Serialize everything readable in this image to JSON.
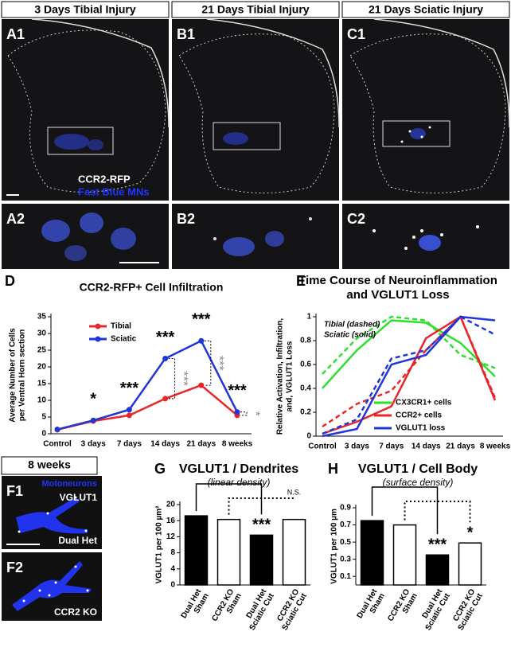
{
  "figure": {
    "columns": [
      "3 Days Tibial Injury",
      "21 Days Tibial Injury",
      "21 Days Sciatic Injury"
    ],
    "panels_top": [
      "A1",
      "B1",
      "C1"
    ],
    "panels_bottom": [
      "A2",
      "B2",
      "C2"
    ],
    "stains": [
      "CCR2-RFP",
      "Fast Blue MNs"
    ],
    "letters": [
      "D",
      "E",
      "G",
      "H"
    ],
    "f_header": "8 weeks",
    "f_panels": [
      "F1",
      "F2"
    ],
    "f_labels": [
      "Motoneurons",
      "VGLUT1",
      "Dual Het",
      "CCR2 KO"
    ]
  },
  "chart_data": [
    {
      "type": "line",
      "title": [
        "CCR2-RFP+ Cell Infiltration"
      ],
      "ylabel": [
        "Average Number of Cells",
        "per Ventral Horn section"
      ],
      "categories": [
        "Control",
        "3 days",
        "7 days",
        "14 days",
        "21 days",
        "8 weeks"
      ],
      "series": [
        {
          "name": "Tibial",
          "color": "#e8262a",
          "values": [
            1.2,
            3.8,
            5.5,
            10.5,
            14.5,
            5.5
          ]
        },
        {
          "name": "Sciatic",
          "color": "#2236d8",
          "values": [
            1.3,
            4,
            7.2,
            22.5,
            27.8,
            6.5
          ]
        }
      ],
      "annotations": [
        {
          "label": "*",
          "category": "3 days"
        },
        {
          "label": "***",
          "category": "7 days"
        },
        {
          "label": "***",
          "category": "14 days"
        },
        {
          "label": "***",
          "category": "21 days"
        },
        {
          "label": "***",
          "category": "8 weeks"
        }
      ],
      "comparison_labels": [
        {
          "label": "***",
          "category": "14 days"
        },
        {
          "label": "***",
          "category": "21 days"
        },
        {
          "label": "*",
          "category": "8 weeks"
        }
      ],
      "ylim": [
        0,
        35
      ],
      "yticks": [
        0,
        5,
        10,
        15,
        20,
        25,
        30,
        35
      ]
    },
    {
      "type": "line",
      "title": [
        "Time Course of Neuroinflammation",
        "and VGLUT1 Loss"
      ],
      "ylabel": [
        "Relative Activation, Infiltration,",
        "and, VGLUT1 Loss"
      ],
      "note": [
        "Tibial (dashed)",
        "Sciatic (solid)"
      ],
      "categories": [
        "Control",
        "3 days",
        "7 days",
        "14 days",
        "21 days",
        "8 weeks"
      ],
      "series": [
        {
          "name": "CX3CR1+ cells",
          "color": "#2ee02e",
          "values": [
            0.4,
            0.72,
            0.97,
            0.95,
            0.78,
            0.5
          ],
          "dashed_values": [
            0.52,
            0.82,
            1,
            0.97,
            0.68,
            0.57
          ]
        },
        {
          "name": "CCR2+ cells",
          "color": "#e8262a",
          "values": [
            0.02,
            0.12,
            0.25,
            0.82,
            1,
            0.3
          ],
          "dashed_values": [
            0.08,
            0.27,
            0.38,
            0.72,
            1,
            0.32
          ]
        },
        {
          "name": "VGLUT1 loss",
          "color": "#2236d8",
          "values": [
            0,
            0.06,
            0.6,
            0.68,
            1,
            0.97
          ],
          "dashed_values": [
            0.02,
            0.14,
            0.65,
            0.72,
            1,
            0.85
          ]
        }
      ],
      "ylim": [
        0,
        1
      ],
      "yticks": [
        0,
        0.2,
        0.4,
        0.6,
        0.8,
        1
      ]
    },
    {
      "type": "bar",
      "title": [
        "VGLUT1 / Dendrites"
      ],
      "subtitle": "(linear density)",
      "ylabel": [
        "VGLUT1 per 100 µm²"
      ],
      "categories": [
        [
          "Dual Het",
          "Sham"
        ],
        [
          "CCR2 KO",
          "Sham"
        ],
        [
          "Dual Het",
          "Sciatic Cut"
        ],
        [
          "CCR2 KO",
          "Sciatic Cut"
        ]
      ],
      "values": [
        17.2,
        16.3,
        12.4,
        16.3
      ],
      "colors": [
        "#000000",
        "#ffffff",
        "#000000",
        "#ffffff"
      ],
      "bar_labels": [
        null,
        null,
        "***",
        null
      ],
      "significance": "N.S.",
      "ylim": [
        0,
        20
      ],
      "yticks": [
        0,
        4,
        8,
        12,
        16,
        20
      ]
    },
    {
      "type": "bar",
      "title": [
        "VGLUT1 / Cell Body"
      ],
      "subtitle": "(surface density)",
      "ylabel": [
        "VGLUT1 per 100 µm"
      ],
      "categories": [
        [
          "Dual Het",
          "Sham"
        ],
        [
          "CCR2 KO",
          "Sham"
        ],
        [
          "Dual Het",
          "Sciatic Cut"
        ],
        [
          "CCR2 KO",
          "Sciatic Cut"
        ]
      ],
      "values": [
        0.75,
        0.7,
        0.35,
        0.49
      ],
      "colors": [
        "#000000",
        "#ffffff",
        "#000000",
        "#ffffff"
      ],
      "bar_labels": [
        null,
        null,
        "***",
        "*"
      ],
      "ylim": [
        0,
        0.9
      ],
      "yticks": [
        0.1,
        0.3,
        0.5,
        0.7,
        0.9
      ]
    }
  ]
}
